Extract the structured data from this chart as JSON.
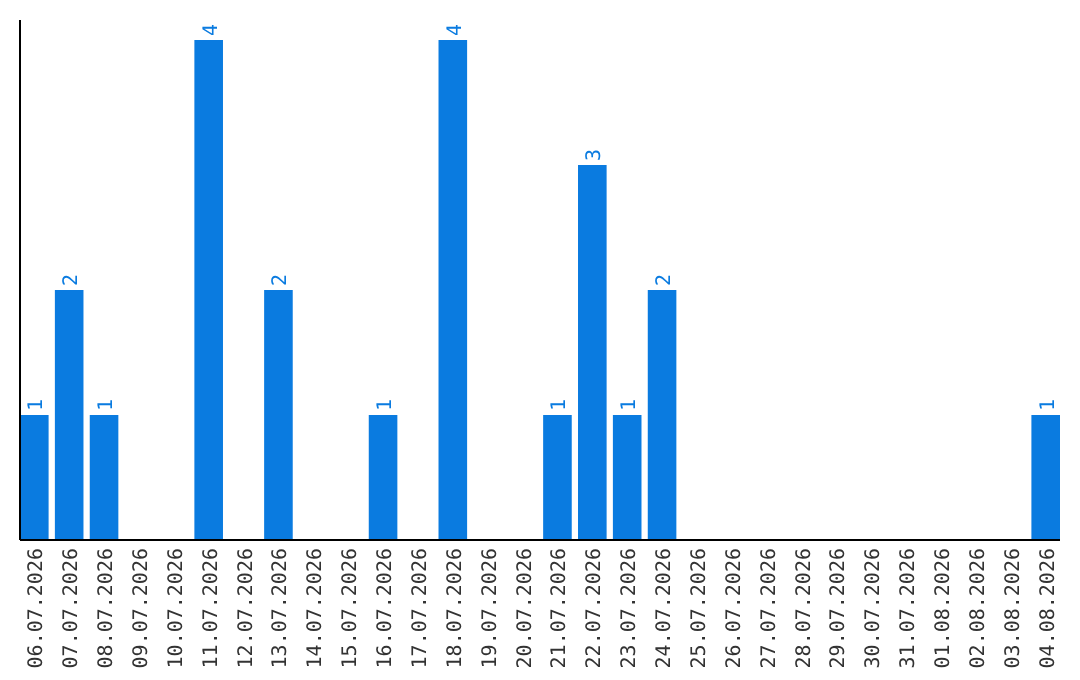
{
  "chart_data": {
    "type": "bar",
    "categories": [
      "06.07.2026",
      "07.07.2026",
      "08.07.2026",
      "09.07.2026",
      "10.07.2026",
      "11.07.2026",
      "12.07.2026",
      "13.07.2026",
      "14.07.2026",
      "15.07.2026",
      "16.07.2026",
      "17.07.2026",
      "18.07.2026",
      "19.07.2026",
      "20.07.2026",
      "21.07.2026",
      "22.07.2026",
      "23.07.2026",
      "24.07.2026",
      "25.07.2026",
      "26.07.2026",
      "27.07.2026",
      "28.07.2026",
      "29.07.2026",
      "30.07.2026",
      "31.07.2026",
      "01.08.2026",
      "02.08.2026",
      "03.08.2026",
      "04.08.2026"
    ],
    "values": [
      1,
      2,
      1,
      0,
      0,
      4,
      0,
      2,
      0,
      0,
      1,
      0,
      4,
      0,
      0,
      1,
      3,
      1,
      2,
      0,
      0,
      0,
      0,
      0,
      0,
      0,
      0,
      0,
      0,
      1
    ],
    "value_labels": [
      "1",
      "2",
      "1",
      null,
      null,
      "4",
      null,
      "2",
      null,
      null,
      "1",
      null,
      "4",
      null,
      null,
      "1",
      "3",
      "1",
      "2",
      null,
      null,
      null,
      null,
      null,
      null,
      null,
      null,
      null,
      null,
      "1"
    ],
    "color": "#0a7be0",
    "ylim": [
      0,
      4
    ],
    "tick_labels": "x"
  }
}
